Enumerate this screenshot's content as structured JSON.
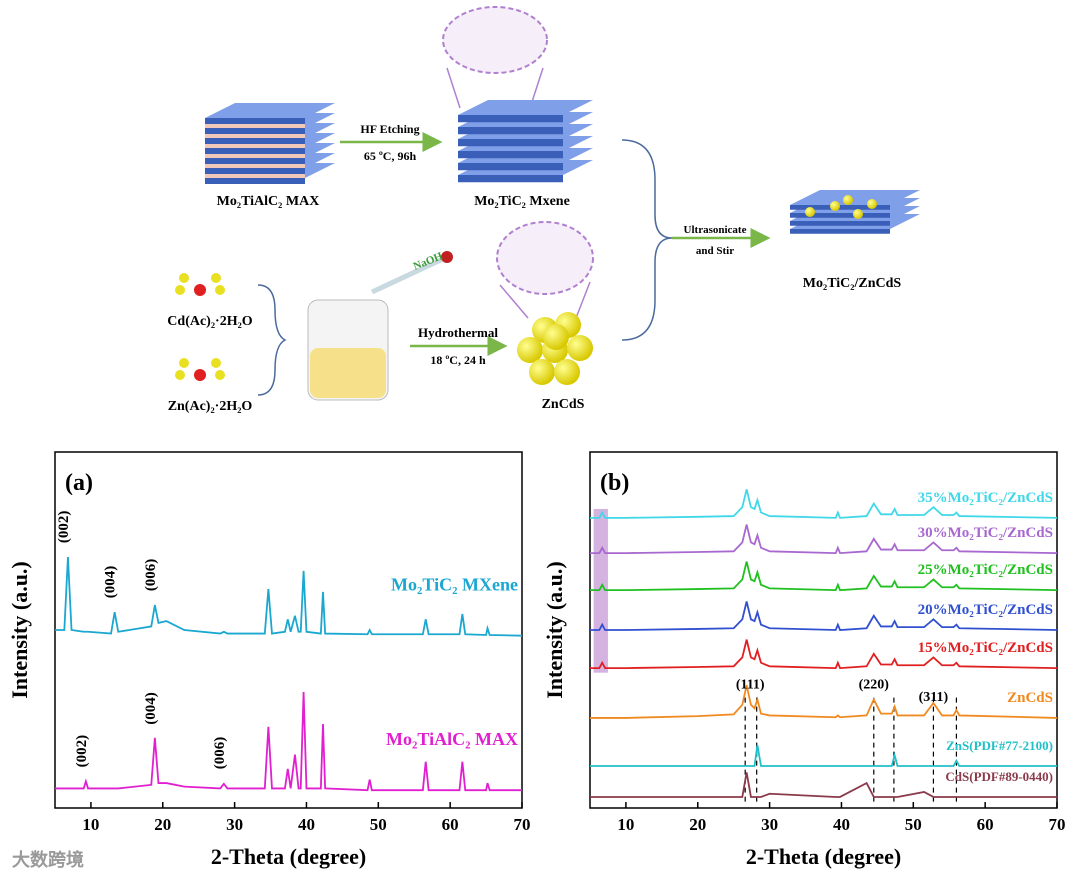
{
  "schematic": {
    "max_label": "Mo₂TiAlC₂ MAX",
    "etch_line1": "HF   Etching",
    "etch_line2": "65 ºC, 96h",
    "mxene_label": "Mo₂TiC₂ Mxene",
    "naoh": "NaOH",
    "cd_salt": "Cd(Ac)₂·2H₂O",
    "zn_salt": "Zn(Ac)₂·2H₂O",
    "hydro_line1": "Hydrothermal",
    "hydro_line2": "18 ºC, 24 h",
    "zncds_label": "ZnCdS",
    "ultra_line1": "Ultrasonicate",
    "ultra_line2": "and Stir",
    "product_label": "Mo₂TiC₂/ZnCdS"
  },
  "watermark": "大数跨境",
  "chart_data": [
    {
      "type": "line",
      "panel_label": "(a)",
      "x_label": "2-Theta (degree)",
      "y_label": "Intensity (a.u.)",
      "xlim": [
        5,
        70
      ],
      "ylim": [
        0,
        100
      ],
      "xticks": [
        10,
        20,
        30,
        40,
        50,
        60,
        70
      ],
      "x": [
        5,
        6.3,
        6.8,
        7.3,
        9,
        9.3,
        9.6,
        12.8,
        13.3,
        13.8,
        18.4,
        18.9,
        19.4,
        20.5,
        23,
        28,
        28.5,
        29,
        34.2,
        34.7,
        35.2,
        37,
        37.4,
        37.8,
        38.4,
        38.9,
        39.2,
        39.6,
        40,
        42,
        42.3,
        42.6,
        48.5,
        48.8,
        49.1,
        56.2,
        56.6,
        57,
        61.3,
        61.7,
        62.1,
        65,
        65.2,
        65.5,
        70
      ],
      "series": [
        {
          "name": "Mo₂TiC₂ MXene",
          "color": "#1aa7d0",
          "values": [
            50,
            50,
            70.5,
            50,
            49.5,
            49.5,
            49.5,
            49,
            55,
            49.5,
            51,
            57,
            52,
            52.5,
            50,
            49,
            49.5,
            49,
            49,
            61.5,
            49,
            49.5,
            53,
            49.5,
            54,
            49.5,
            49.5,
            66.6,
            49.5,
            49,
            60.7,
            49,
            48.8,
            50,
            48.8,
            48.8,
            53,
            48.8,
            48.8,
            54.5,
            48.8,
            48.6,
            50.5,
            48.6,
            48.4
          ]
        },
        {
          "name": "Mo₂TiAlC₂ MAX",
          "color": "#e020d0",
          "values": [
            5.5,
            5.5,
            5.5,
            5.5,
            5.5,
            7.5,
            5.5,
            5.5,
            5.5,
            5.5,
            6.5,
            19.7,
            7,
            7,
            6,
            5.5,
            6.8,
            5.5,
            5.5,
            22.8,
            5.5,
            5.5,
            11,
            5.5,
            15,
            5.5,
            5.5,
            32.6,
            5.5,
            5.5,
            23.6,
            5.5,
            5,
            8,
            5,
            5,
            13,
            5,
            5,
            13,
            5,
            5,
            7,
            5,
            5
          ]
        }
      ],
      "annotations": [
        {
          "text": "(002)",
          "x": 6.8,
          "y": 73
        },
        {
          "text": "(004)",
          "x": 13.3,
          "y": 57.5
        },
        {
          "text": "(006)",
          "x": 18.9,
          "y": 59.5
        },
        {
          "text": "(002)",
          "x": 9.3,
          "y": 10
        },
        {
          "text": "(004)",
          "x": 18.9,
          "y": 22
        },
        {
          "text": "(006)",
          "x": 28.5,
          "y": 9.5
        }
      ]
    },
    {
      "type": "line",
      "panel_label": "(b)",
      "x_label": "2-Theta (degree)",
      "y_label": "Intensity (a.u.)",
      "xlim": [
        5,
        70
      ],
      "ylim": [
        0,
        100
      ],
      "xticks": [
        10,
        20,
        30,
        40,
        50,
        60,
        70
      ],
      "highlight_x": [
        5.5,
        7.5
      ],
      "highlight_color": "#c9a0d8",
      "reference_lines": [
        26.6,
        28.2,
        44.5,
        47.3,
        52.8,
        56
      ],
      "x": [
        5,
        6.3,
        6.7,
        7.1,
        10,
        20,
        25,
        26.2,
        26.8,
        27.4,
        27.9,
        28.3,
        28.8,
        30,
        39.2,
        39.5,
        39.8,
        43.5,
        44.5,
        45.5,
        47,
        47.4,
        47.8,
        51.5,
        52.8,
        54,
        55.6,
        56,
        56.4,
        70
      ],
      "series": [
        {
          "name": "35%Mo₂TiC₂/ZnCdS",
          "color": "#40d8e8",
          "values": [
            81.5,
            81.5,
            83,
            81.5,
            81.5,
            81.8,
            82,
            84.5,
            89.5,
            84.5,
            84,
            86.5,
            83,
            82,
            81.5,
            83,
            81.5,
            82,
            85.5,
            82.5,
            82.5,
            84,
            82.3,
            82.3,
            84.5,
            82.3,
            82.3,
            83,
            82,
            81.5
          ]
        },
        {
          "name": "30%Mo₂TiC₂/ZnCdS",
          "color": "#a868d0",
          "values": [
            71.6,
            71.6,
            73.1,
            71.6,
            71.6,
            71.9,
            72.1,
            74.6,
            79.6,
            74.6,
            74.1,
            76.6,
            73.1,
            72.1,
            71.6,
            73.1,
            71.6,
            72.1,
            75.6,
            72.6,
            72.6,
            74.1,
            72.4,
            72.4,
            74.6,
            72.4,
            72.4,
            73.1,
            72.1,
            71.6
          ]
        },
        {
          "name": "25%Mo₂TiC₂/ZnCdS",
          "color": "#20c020",
          "values": [
            61.2,
            61.2,
            62.7,
            61.2,
            61.2,
            61.5,
            61.7,
            64.2,
            69.2,
            64.2,
            63.7,
            66.2,
            62.7,
            61.7,
            61.2,
            62.7,
            61.2,
            61.7,
            65.2,
            62.2,
            62.2,
            63.7,
            62,
            62,
            64.2,
            62,
            62,
            62.7,
            61.7,
            61.2
          ]
        },
        {
          "name": "20%Mo₂TiC₂/ZnCdS",
          "color": "#3050d0",
          "values": [
            50,
            50,
            51.5,
            50,
            50,
            50.3,
            50.5,
            53,
            58,
            53,
            52.5,
            55,
            51.5,
            50.5,
            50,
            51.5,
            50,
            50.5,
            54,
            51,
            51,
            52.5,
            50.8,
            50.8,
            53,
            50.8,
            50.8,
            51.5,
            50.5,
            50
          ]
        },
        {
          "name": "15%Mo₂TiC₂/ZnCdS",
          "color": "#e02020",
          "values": [
            39.3,
            39.3,
            40.8,
            39.3,
            39.3,
            39.6,
            39.8,
            42.3,
            47.3,
            42.3,
            41.8,
            44.3,
            40.8,
            39.8,
            39.3,
            40.8,
            39.3,
            39.8,
            43.3,
            40.3,
            40.3,
            41.8,
            40.1,
            40.1,
            42.3,
            40.1,
            40.1,
            40.8,
            39.8,
            39.3
          ]
        },
        {
          "name": "ZnCdS",
          "color": "#f08a20",
          "values": [
            25.3,
            25.3,
            25.3,
            25.3,
            25.3,
            25.8,
            26.3,
            29,
            34.5,
            29,
            28,
            30.5,
            26.5,
            26,
            25.5,
            26,
            25.5,
            26,
            30.5,
            26.5,
            26.5,
            28.5,
            26,
            26,
            29.5,
            26,
            26,
            27.5,
            26,
            25.3
          ]
        },
        {
          "name": "ZnS(PDF#77-2100)",
          "color": "#20c0c8",
          "values": [
            11.8,
            11.8,
            11.8,
            11.8,
            11.8,
            11.8,
            11.8,
            11.8,
            11.8,
            11.8,
            11.8,
            17.7,
            11.8,
            11.8,
            11.8,
            11.8,
            11.8,
            11.8,
            11.8,
            11.8,
            11.8,
            14.8,
            11.8,
            11.8,
            11.8,
            11.8,
            11.8,
            13.3,
            11.8,
            11.8
          ]
        },
        {
          "name": "CdS(PDF#89-0440)",
          "color": "#8a3a4a",
          "values": [
            3.1,
            3.1,
            3.1,
            3.1,
            3.1,
            3.1,
            3.1,
            3.1,
            10,
            3.1,
            3.1,
            3.1,
            3.1,
            4,
            3.1,
            3.1,
            3.1,
            7,
            3.1,
            3.1,
            3.1,
            3.1,
            3.1,
            4.5,
            3.1,
            3.1,
            3.1,
            3.1,
            3.1,
            3.1
          ]
        }
      ],
      "annotations": [
        {
          "text": "(111)",
          "x": 27.3,
          "y": 33.5
        },
        {
          "text": "(220)",
          "x": 44.5,
          "y": 33.5
        },
        {
          "text": "(311)",
          "x": 52.8,
          "y": 30
        }
      ]
    }
  ]
}
